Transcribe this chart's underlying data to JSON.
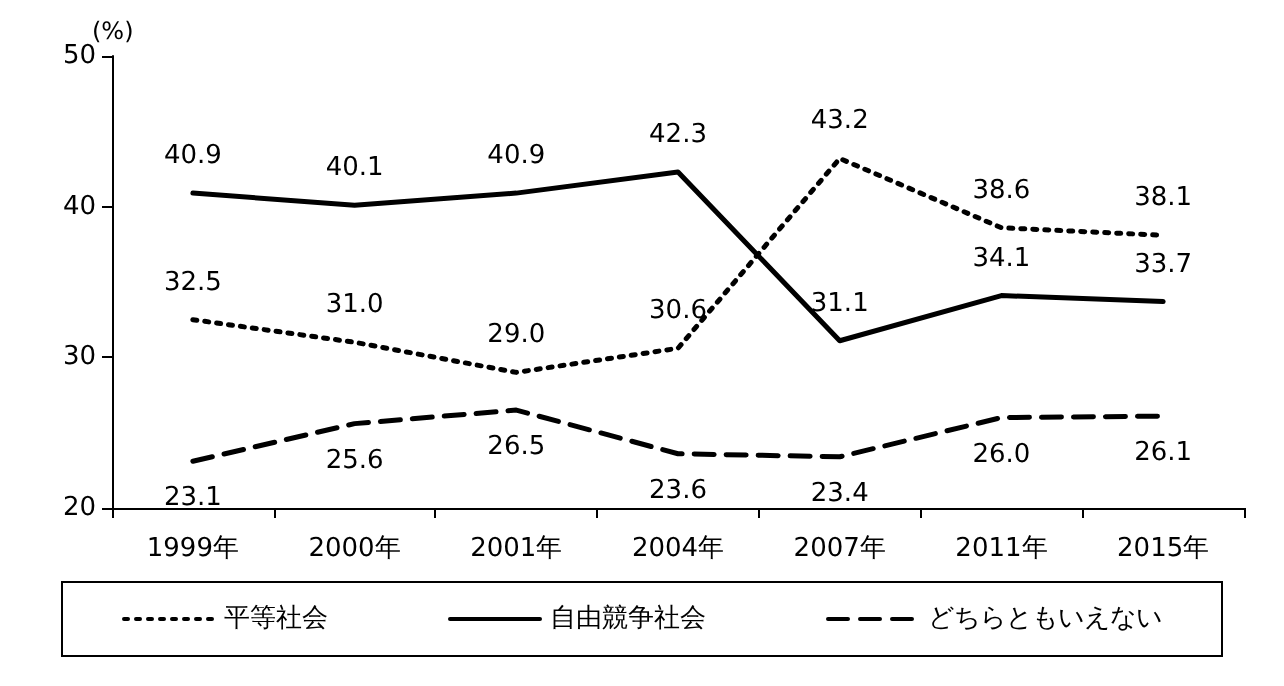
{
  "chart_data": {
    "type": "line",
    "ylabel": "(%)",
    "categories": [
      "1999年",
      "2000年",
      "2001年",
      "2004年",
      "2007年",
      "2011年",
      "2015年"
    ],
    "series": [
      {
        "name": "平等社会",
        "color": "#000000",
        "line_style": "dotted",
        "values": [
          32.5,
          31.0,
          29.0,
          30.6,
          43.2,
          38.6,
          38.1
        ],
        "value_labels": [
          "32.5",
          "31.0",
          "29.0",
          "30.6",
          "43.2",
          "38.6",
          "38.1"
        ]
      },
      {
        "name": "自由競争社会",
        "color": "#000000",
        "line_style": "solid",
        "values": [
          40.9,
          40.1,
          40.9,
          42.3,
          31.1,
          34.1,
          33.7
        ],
        "value_labels": [
          "40.9",
          "40.1",
          "40.9",
          "42.3",
          "31.1",
          "34.1",
          "33.7"
        ]
      },
      {
        "name": "どちらともいえない",
        "color": "#000000",
        "line_style": "dashed",
        "values": [
          23.1,
          25.6,
          26.5,
          23.6,
          23.4,
          26.0,
          26.1
        ],
        "value_labels": [
          "23.1",
          "25.6",
          "26.5",
          "23.6",
          "23.4",
          "26.0",
          "26.1"
        ]
      }
    ],
    "ylim": [
      20,
      50
    ],
    "yticks": [
      20,
      30,
      40,
      50
    ],
    "grid": false,
    "legend": "bottom",
    "marker": "none"
  }
}
